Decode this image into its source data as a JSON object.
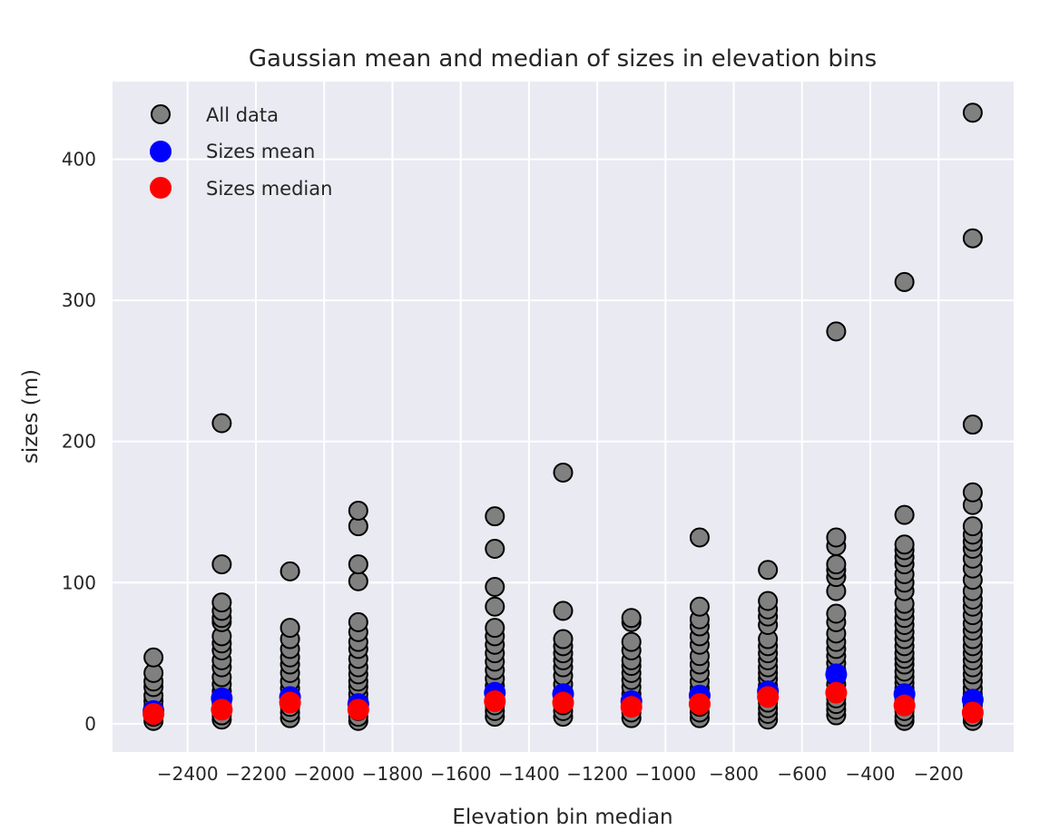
{
  "chart_data": {
    "type": "scatter",
    "title": "Gaussian mean and median of sizes in elevation bins",
    "xlabel": "Elevation bin median",
    "ylabel": "sizes (m)",
    "xlim": [
      -2620,
      20
    ],
    "ylim": [
      -20,
      455
    ],
    "x_ticks": [
      -2400,
      -2200,
      -2000,
      -1800,
      -1600,
      -1400,
      -1200,
      -1000,
      -800,
      -600,
      -400,
      -200
    ],
    "x_tick_labels": [
      "−2400",
      "−2200",
      "−2000",
      "−1800",
      "−1600",
      "−1400",
      "−1200",
      "−1000",
      "−800",
      "−600",
      "−400",
      "−200"
    ],
    "y_ticks": [
      0,
      100,
      200,
      300,
      400
    ],
    "y_tick_labels": [
      "0",
      "100",
      "200",
      "300",
      "400"
    ],
    "grid": true,
    "legend_position": "top-left",
    "colors": {
      "plot_background": "#eaeaf2",
      "grid": "#ffffff",
      "all_data_fill": "#808080",
      "all_data_edge": "#000000",
      "mean": "#0000ff",
      "median": "#ff0000"
    },
    "series": [
      {
        "name": "All data",
        "color": "#808080",
        "points": [
          [
            -2500,
            2
          ],
          [
            -2500,
            5
          ],
          [
            -2500,
            8
          ],
          [
            -2500,
            12
          ],
          [
            -2500,
            16
          ],
          [
            -2500,
            20
          ],
          [
            -2500,
            26
          ],
          [
            -2500,
            30
          ],
          [
            -2500,
            36
          ],
          [
            -2500,
            47
          ],
          [
            -2300,
            3
          ],
          [
            -2300,
            6
          ],
          [
            -2300,
            10
          ],
          [
            -2300,
            14
          ],
          [
            -2300,
            18
          ],
          [
            -2300,
            23
          ],
          [
            -2300,
            28
          ],
          [
            -2300,
            33
          ],
          [
            -2300,
            40
          ],
          [
            -2300,
            45
          ],
          [
            -2300,
            52
          ],
          [
            -2300,
            57
          ],
          [
            -2300,
            62
          ],
          [
            -2300,
            72
          ],
          [
            -2300,
            75
          ],
          [
            -2300,
            80
          ],
          [
            -2300,
            86
          ],
          [
            -2300,
            113
          ],
          [
            -2300,
            213
          ],
          [
            -2100,
            4
          ],
          [
            -2100,
            8
          ],
          [
            -2100,
            12
          ],
          [
            -2100,
            16
          ],
          [
            -2100,
            20
          ],
          [
            -2100,
            25
          ],
          [
            -2100,
            30
          ],
          [
            -2100,
            36
          ],
          [
            -2100,
            42
          ],
          [
            -2100,
            47
          ],
          [
            -2100,
            53
          ],
          [
            -2100,
            60
          ],
          [
            -2100,
            68
          ],
          [
            -2100,
            108
          ],
          [
            -1900,
            2
          ],
          [
            -1900,
            5
          ],
          [
            -1900,
            9
          ],
          [
            -1900,
            13
          ],
          [
            -1900,
            17
          ],
          [
            -1900,
            21
          ],
          [
            -1900,
            26
          ],
          [
            -1900,
            30
          ],
          [
            -1900,
            35
          ],
          [
            -1900,
            40
          ],
          [
            -1900,
            46
          ],
          [
            -1900,
            53
          ],
          [
            -1900,
            58
          ],
          [
            -1900,
            65
          ],
          [
            -1900,
            72
          ],
          [
            -1900,
            101
          ],
          [
            -1900,
            113
          ],
          [
            -1900,
            140
          ],
          [
            -1900,
            151
          ],
          [
            -1500,
            5
          ],
          [
            -1500,
            9
          ],
          [
            -1500,
            13
          ],
          [
            -1500,
            18
          ],
          [
            -1500,
            22
          ],
          [
            -1500,
            27
          ],
          [
            -1500,
            32
          ],
          [
            -1500,
            38
          ],
          [
            -1500,
            44
          ],
          [
            -1500,
            50
          ],
          [
            -1500,
            56
          ],
          [
            -1500,
            62
          ],
          [
            -1500,
            68
          ],
          [
            -1500,
            83
          ],
          [
            -1500,
            97
          ],
          [
            -1500,
            124
          ],
          [
            -1500,
            147
          ],
          [
            -1300,
            5
          ],
          [
            -1300,
            9
          ],
          [
            -1300,
            13
          ],
          [
            -1300,
            18
          ],
          [
            -1300,
            23
          ],
          [
            -1300,
            28
          ],
          [
            -1300,
            34
          ],
          [
            -1300,
            40
          ],
          [
            -1300,
            45
          ],
          [
            -1300,
            50
          ],
          [
            -1300,
            55
          ],
          [
            -1300,
            60
          ],
          [
            -1300,
            80
          ],
          [
            -1300,
            178
          ],
          [
            -1100,
            4
          ],
          [
            -1100,
            8
          ],
          [
            -1100,
            12
          ],
          [
            -1100,
            16
          ],
          [
            -1100,
            21
          ],
          [
            -1100,
            26
          ],
          [
            -1100,
            31
          ],
          [
            -1100,
            36
          ],
          [
            -1100,
            41
          ],
          [
            -1100,
            45
          ],
          [
            -1100,
            52
          ],
          [
            -1100,
            58
          ],
          [
            -1100,
            72
          ],
          [
            -1100,
            75
          ],
          [
            -900,
            4
          ],
          [
            -900,
            8
          ],
          [
            -900,
            12
          ],
          [
            -900,
            16
          ],
          [
            -900,
            20
          ],
          [
            -900,
            25
          ],
          [
            -900,
            30
          ],
          [
            -900,
            36
          ],
          [
            -900,
            42
          ],
          [
            -900,
            48
          ],
          [
            -900,
            56
          ],
          [
            -900,
            62
          ],
          [
            -900,
            69
          ],
          [
            -900,
            74
          ],
          [
            -900,
            83
          ],
          [
            -900,
            132
          ],
          [
            -700,
            3
          ],
          [
            -700,
            7
          ],
          [
            -700,
            11
          ],
          [
            -700,
            15
          ],
          [
            -700,
            19
          ],
          [
            -700,
            23
          ],
          [
            -700,
            27
          ],
          [
            -700,
            32
          ],
          [
            -700,
            36
          ],
          [
            -700,
            40
          ],
          [
            -700,
            45
          ],
          [
            -700,
            50
          ],
          [
            -700,
            55
          ],
          [
            -700,
            60
          ],
          [
            -700,
            70
          ],
          [
            -700,
            76
          ],
          [
            -700,
            81
          ],
          [
            -700,
            87
          ],
          [
            -700,
            109
          ],
          [
            -500,
            6
          ],
          [
            -500,
            10
          ],
          [
            -500,
            14
          ],
          [
            -500,
            18
          ],
          [
            -500,
            23
          ],
          [
            -500,
            28
          ],
          [
            -500,
            33
          ],
          [
            -500,
            38
          ],
          [
            -500,
            43
          ],
          [
            -500,
            48
          ],
          [
            -500,
            53
          ],
          [
            -500,
            58
          ],
          [
            -500,
            64
          ],
          [
            -500,
            72
          ],
          [
            -500,
            78
          ],
          [
            -500,
            94
          ],
          [
            -500,
            104
          ],
          [
            -500,
            109
          ],
          [
            -500,
            113
          ],
          [
            -500,
            126
          ],
          [
            -500,
            132
          ],
          [
            -500,
            278
          ],
          [
            -300,
            2
          ],
          [
            -300,
            5
          ],
          [
            -300,
            9
          ],
          [
            -300,
            13
          ],
          [
            -300,
            17
          ],
          [
            -300,
            21
          ],
          [
            -300,
            25
          ],
          [
            -300,
            29
          ],
          [
            -300,
            33
          ],
          [
            -300,
            37
          ],
          [
            -300,
            42
          ],
          [
            -300,
            46
          ],
          [
            -300,
            50
          ],
          [
            -300,
            55
          ],
          [
            -300,
            60
          ],
          [
            -300,
            65
          ],
          [
            -300,
            70
          ],
          [
            -300,
            75
          ],
          [
            -300,
            80
          ],
          [
            -300,
            85
          ],
          [
            -300,
            94
          ],
          [
            -300,
            100
          ],
          [
            -300,
            106
          ],
          [
            -300,
            113
          ],
          [
            -300,
            118
          ],
          [
            -300,
            123
          ],
          [
            -300,
            127
          ],
          [
            -300,
            148
          ],
          [
            -300,
            313
          ],
          [
            -100,
            2
          ],
          [
            -100,
            5
          ],
          [
            -100,
            9
          ],
          [
            -100,
            13
          ],
          [
            -100,
            17
          ],
          [
            -100,
            21
          ],
          [
            -100,
            25
          ],
          [
            -100,
            30
          ],
          [
            -100,
            35
          ],
          [
            -100,
            40
          ],
          [
            -100,
            45
          ],
          [
            -100,
            50
          ],
          [
            -100,
            55
          ],
          [
            -100,
            60
          ],
          [
            -100,
            66
          ],
          [
            -100,
            71
          ],
          [
            -100,
            77
          ],
          [
            -100,
            83
          ],
          [
            -100,
            88
          ],
          [
            -100,
            94
          ],
          [
            -100,
            102
          ],
          [
            -100,
            110
          ],
          [
            -100,
            117
          ],
          [
            -100,
            124
          ],
          [
            -100,
            129
          ],
          [
            -100,
            134
          ],
          [
            -100,
            140
          ],
          [
            -100,
            155
          ],
          [
            -100,
            164
          ],
          [
            -100,
            212
          ],
          [
            -100,
            344
          ],
          [
            -100,
            433
          ]
        ]
      },
      {
        "name": "Sizes mean",
        "color": "#0000ff",
        "points": [
          [
            -2500,
            9
          ],
          [
            -2300,
            18
          ],
          [
            -2100,
            19
          ],
          [
            -1900,
            14
          ],
          [
            -1500,
            22
          ],
          [
            -1300,
            21
          ],
          [
            -1100,
            16
          ],
          [
            -900,
            20
          ],
          [
            -700,
            23
          ],
          [
            -500,
            35
          ],
          [
            -300,
            21
          ],
          [
            -100,
            17
          ]
        ]
      },
      {
        "name": "Sizes median",
        "color": "#ff0000",
        "points": [
          [
            -2500,
            7
          ],
          [
            -2300,
            10
          ],
          [
            -2100,
            15
          ],
          [
            -1900,
            10
          ],
          [
            -1500,
            16
          ],
          [
            -1300,
            15
          ],
          [
            -1100,
            12
          ],
          [
            -900,
            14
          ],
          [
            -700,
            19
          ],
          [
            -500,
            22
          ],
          [
            -300,
            13
          ],
          [
            -100,
            8
          ]
        ]
      }
    ]
  }
}
